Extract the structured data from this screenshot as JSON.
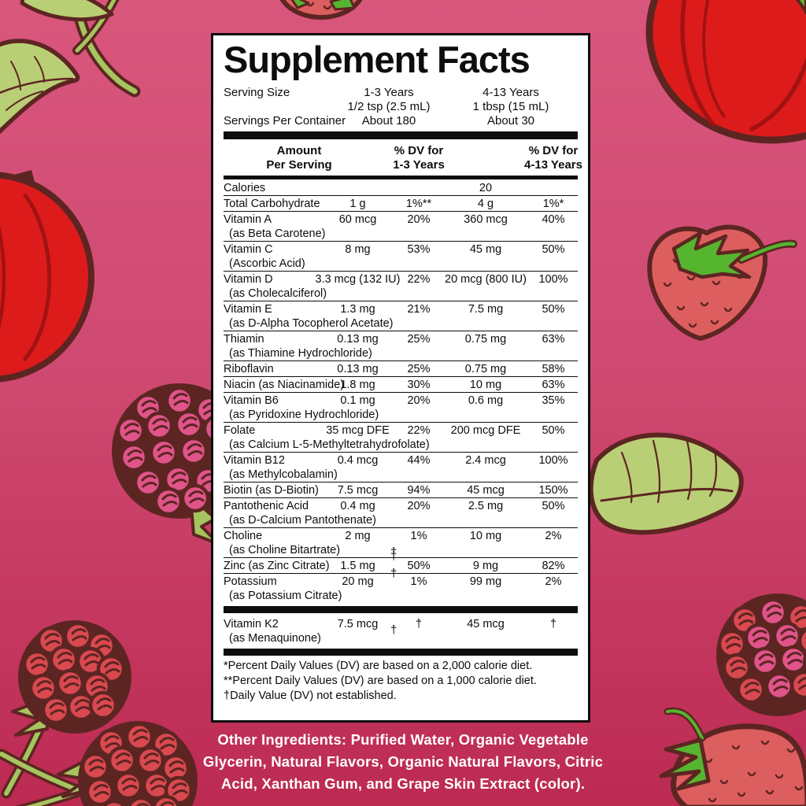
{
  "theme": {
    "bg-top": "#d9567d",
    "bg-mid": "#cf4a72",
    "bg-bottom": "#bc2a52",
    "outline": "#5d2522",
    "leaf": "#b9cf75",
    "stem": "#a6c55f",
    "apple": "#dd1b1b",
    "apple-shade": "#a31212",
    "berry-red": "#d9494f",
    "berry-pink": "#e0548a",
    "straw": "#dd5e5e",
    "straw-green": "#55b52f",
    "label-bg": "#ffffff",
    "ink": "#0d0d0d",
    "other-text": "#ffffff"
  },
  "illustrations": {
    "names": [
      "branch-leaves-illustration",
      "apple-left-illustration",
      "strawberry-top-illustration",
      "apple-top-right-illustration",
      "strawberry-right-illustration",
      "leaf-right-illustration",
      "raspberry-pink-left-illustration",
      "raspberry-pink-right-illustration",
      "raspberry-red-bottom-left-illustration",
      "strawberry-bottom-right-illustration"
    ]
  },
  "label": {
    "title": "Supplement Facts",
    "serving": {
      "size_label": "Serving Size",
      "col1_line1": "1-3 Years",
      "col1_line2": "1/2 tsp (2.5 mL)",
      "col2_line1": "4-13 Years",
      "col2_line2": "1 tbsp (15 mL)",
      "per_container_label": "Servings Per Container",
      "per_container_col1": "About 180",
      "per_container_col2": "About 30"
    },
    "header": {
      "amount_l1": "Amount",
      "amount_l2": "Per Serving",
      "dv1_l1": "% DV for",
      "dv1_l2": "1-3 Years",
      "dv2_l1": "% DV for",
      "dv2_l2": "4-13 Years"
    },
    "rows": [
      {
        "name": "Calories",
        "amt1": "",
        "dv1": "",
        "amt2": "20",
        "dv2": ""
      },
      {
        "name": "Total Carbohydrate",
        "amt1": "1 g",
        "dv1": "1%**",
        "amt2": "4 g",
        "dv2": "1%*"
      },
      {
        "name": "Vitamin A",
        "sub": "(as Beta Carotene)",
        "amt1": "60 mcg",
        "dv1": "20%",
        "amt2": "360 mcg",
        "dv2": "40%"
      },
      {
        "name": "Vitamin C",
        "sub": "(Ascorbic Acid)",
        "amt1": "8 mg",
        "dv1": "53%",
        "amt2": "45 mg",
        "dv2": "50%"
      },
      {
        "name": "Vitamin D",
        "sub": "(as Cholecalciferol)",
        "amt1": "3.3 mcg (132 IU)",
        "dv1": "22%",
        "amt2": "20 mcg (800 IU)",
        "dv2": "100%"
      },
      {
        "name": "Vitamin E",
        "sub": "(as D-Alpha Tocopherol Acetate)",
        "amt1": "1.3 mg",
        "dv1": "21%",
        "amt2": "7.5 mg",
        "dv2": "50%"
      },
      {
        "name": "Thiamin",
        "sub": "(as Thiamine Hydrochloride)",
        "amt1": "0.13 mg",
        "dv1": "25%",
        "amt2": "0.75 mg",
        "dv2": "63%"
      },
      {
        "name": "Riboflavin",
        "amt1": "0.13 mg",
        "dv1": "25%",
        "amt2": "0.75 mg",
        "dv2": "58%"
      },
      {
        "name": "Niacin (as Niacinamide)",
        "amt1": "1.8 mg",
        "dv1": "30%",
        "amt2": "10 mg",
        "dv2": "63%"
      },
      {
        "name": "Vitamin B6",
        "sub": "(as Pyridoxine Hydrochloride)",
        "amt1": "0.1 mg",
        "dv1": "20%",
        "amt2": "0.6 mg",
        "dv2": "35%"
      },
      {
        "name": "Folate",
        "sub": "(as Calcium L-5-Methyltetrahydrofolate)",
        "amt1": "35 mcg DFE",
        "dv1": "22%",
        "amt2": "200 mcg DFE",
        "dv2": "50%"
      },
      {
        "name": "Vitamin B12",
        "sub": "(as Methylcobalamin)",
        "amt1": "0.4 mcg",
        "dv1": "44%",
        "amt2": "2.4 mcg",
        "dv2": "100%"
      },
      {
        "name": "Biotin (as D-Biotin)",
        "amt1": "7.5 mcg",
        "dv1": "94%",
        "amt2": "45 mcg",
        "dv2": "150%"
      },
      {
        "name": "Pantothenic Acid",
        "sub": "(as D-Calcium Pantothenate)",
        "amt1": "0.4 mg",
        "dv1": "20%",
        "amt2": "2.5 mg",
        "dv2": "50%"
      },
      {
        "name": "Choline",
        "sub": "(as Choline Bitartrate)",
        "amt1": "2 mg",
        "dv1": "1%",
        "amt2": "10 mg",
        "dv2": "2%",
        "rail": [
          "subline"
        ]
      },
      {
        "name": "Zinc (as Zinc Citrate)",
        "amt1": "1.5 mg",
        "dv1": "50%",
        "amt2": "9 mg",
        "dv2": "82%",
        "rail": [
          "top",
          "bottom"
        ]
      },
      {
        "name": "Potassium",
        "sub": "(as Potassium Citrate)",
        "amt1": "20 mg",
        "dv1": "1%",
        "amt2": "99 mg",
        "dv2": "2%"
      }
    ],
    "row_k2": {
      "name": "Vitamin K2",
      "sub": "(as Menaquinone)",
      "amt1": "7.5 mcg",
      "dv1": "†",
      "amt2": "45 mcg",
      "dv2": "†",
      "rail": [
        "mid"
      ]
    },
    "footnotes": [
      "*Percent Daily Values (DV) are based on a 2,000 calorie diet.",
      "**Percent Daily Values (DV) are based on a 1,000 calorie diet.",
      "†Daily Value (DV) not established."
    ]
  },
  "other_ingredients": "Other Ingredients: Purified Water, Organic Vegetable Glycerin, Natural Flavors, Organic Natural Flavors, Citric Acid, Xanthan Gum, and Grape Skin Extract (color)."
}
